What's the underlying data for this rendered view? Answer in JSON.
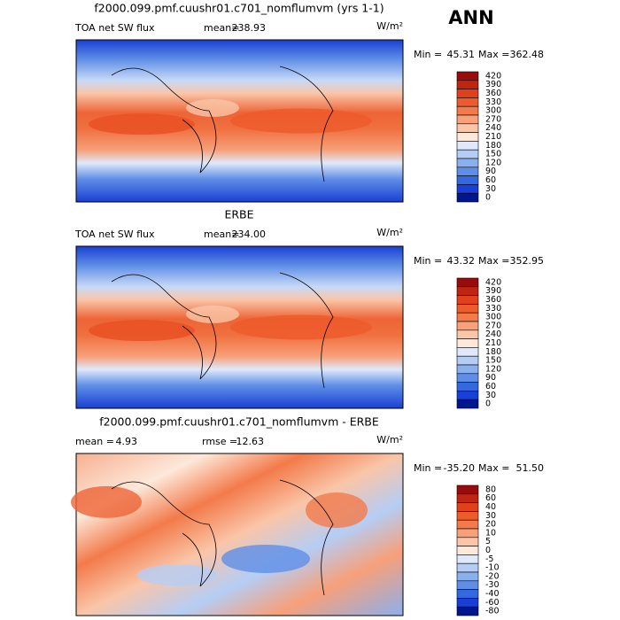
{
  "heading": "ANN",
  "panels": [
    {
      "title": "f2000.099.pmf.cuushr01.c701_nomflumvm (yrs 1-1)",
      "left_label": "TOA net SW flux",
      "stats": [
        {
          "label": "mean=",
          "value": "238.93"
        }
      ],
      "units": "W/m²",
      "range_text": [
        {
          "label": "Min =",
          "value": "45.31"
        },
        {
          "label": "Max =",
          "value": "362.48"
        }
      ],
      "colorbar": {
        "levels": [
          420,
          390,
          360,
          330,
          300,
          270,
          240,
          210,
          180,
          150,
          120,
          90,
          60,
          30,
          0
        ],
        "colors": [
          "#9a0c0c",
          "#c0260f",
          "#e0401a",
          "#ed5c2c",
          "#f37a4a",
          "#f7a07a",
          "#fac5a8",
          "#fde8da",
          "#dfe9fb",
          "#b5cdf5",
          "#8bb0ee",
          "#5f8ee6",
          "#3468df",
          "#1840d6",
          "#00168f"
        ]
      }
    },
    {
      "title": "ERBE",
      "left_label": "TOA net SW flux",
      "stats": [
        {
          "label": "mean=",
          "value": "234.00"
        }
      ],
      "units": "W/m²",
      "range_text": [
        {
          "label": "Min =",
          "value": "43.32"
        },
        {
          "label": "Max =",
          "value": "352.95"
        }
      ],
      "colorbar": {
        "levels": [
          420,
          390,
          360,
          330,
          300,
          270,
          240,
          210,
          180,
          150,
          120,
          90,
          60,
          30,
          0
        ],
        "colors": [
          "#9a0c0c",
          "#c0260f",
          "#e0401a",
          "#ed5c2c",
          "#f37a4a",
          "#f7a07a",
          "#fac5a8",
          "#fde8da",
          "#dfe9fb",
          "#b5cdf5",
          "#8bb0ee",
          "#5f8ee6",
          "#3468df",
          "#1840d6",
          "#00168f"
        ]
      }
    },
    {
      "title": "f2000.099.pmf.cuushr01.c701_nomflumvm - ERBE",
      "left_label": null,
      "stats": [
        {
          "label": "mean =",
          "value": "4.93"
        },
        {
          "label": "rmse =",
          "value": "12.63"
        }
      ],
      "units": "W/m²",
      "range_text": [
        {
          "label": "Min =",
          "value": "-35.20"
        },
        {
          "label": "Max =",
          "value": "51.50"
        }
      ],
      "colorbar": {
        "levels": [
          80,
          60,
          40,
          30,
          20,
          10,
          5,
          0,
          -5,
          -10,
          -20,
          -30,
          -40,
          -60,
          -80
        ],
        "colors": [
          "#9a0c0c",
          "#c0260f",
          "#e0401a",
          "#ed5c2c",
          "#f37a4a",
          "#f7a07a",
          "#fac5a8",
          "#fde8da",
          "#dfe9fb",
          "#b5cdf5",
          "#8bb0ee",
          "#5f8ee6",
          "#3468df",
          "#1840d6",
          "#00168f"
        ]
      }
    }
  ]
}
